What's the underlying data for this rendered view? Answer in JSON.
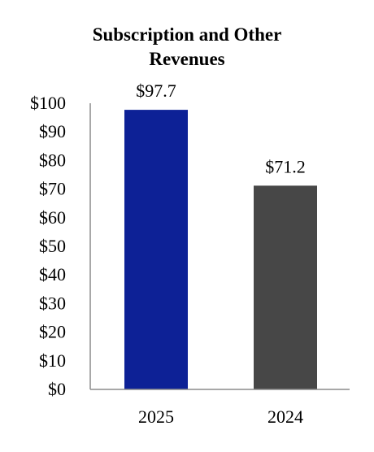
{
  "chart_data": {
    "type": "bar",
    "title_lines": [
      "Subscription and Other",
      "Revenues"
    ],
    "categories": [
      "2025",
      "2024"
    ],
    "values": [
      97.7,
      71.2
    ],
    "data_labels": [
      "$97.7",
      "$71.2"
    ],
    "bar_colors": [
      "#0d2196",
      "#474747"
    ],
    "yticks": [
      "$0",
      "$10",
      "$20",
      "$30",
      "$40",
      "$50",
      "$60",
      "$70",
      "$80",
      "$90",
      "$100"
    ],
    "ylim": [
      0,
      100
    ],
    "xlabel": "",
    "ylabel": "",
    "grid": false,
    "legend": false
  }
}
